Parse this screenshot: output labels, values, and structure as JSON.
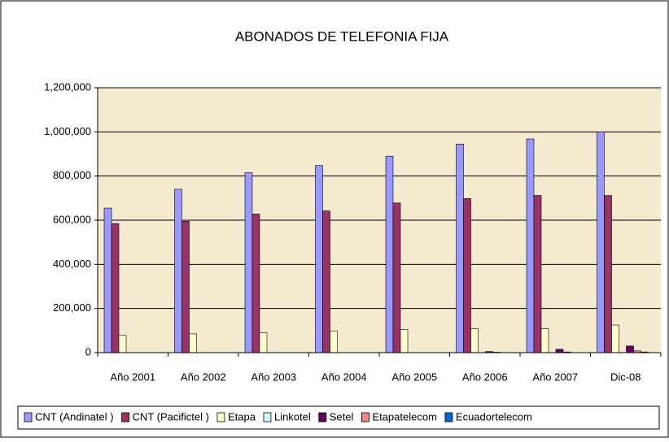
{
  "chart_data": {
    "type": "bar",
    "title": "ABONADOS DE TELEFONIA FIJA",
    "categories": [
      "Año 2001",
      "Año 2002",
      "Año 2003",
      "Año 2004",
      "Año 2005",
      "Año 2006",
      "Año 2007",
      "Dic-08"
    ],
    "series": [
      {
        "name": "CNT (Andinatel )",
        "color": "#9999ff",
        "values": [
          655000,
          740000,
          815000,
          848000,
          890000,
          945000,
          968000,
          1000000
        ]
      },
      {
        "name": "CNT (Pacifictel )",
        "color": "#993366",
        "values": [
          585000,
          595000,
          628000,
          642000,
          678000,
          698000,
          712000,
          712000
        ]
      },
      {
        "name": "Etapa",
        "color": "#ffffcc",
        "values": [
          78000,
          85000,
          90000,
          98000,
          105000,
          108000,
          108000,
          125000
        ]
      },
      {
        "name": "Linkotel",
        "color": "#ccffff",
        "values": [
          0,
          0,
          0,
          0,
          0,
          0,
          0,
          0
        ]
      },
      {
        "name": "Setel",
        "color": "#660066",
        "values": [
          0,
          0,
          0,
          0,
          0,
          5000,
          15000,
          30000
        ]
      },
      {
        "name": "Etapatelecom",
        "color": "#ff8080",
        "values": [
          0,
          0,
          0,
          0,
          0,
          2000,
          3000,
          8000
        ]
      },
      {
        "name": "Ecuadortelecom",
        "color": "#0066cc",
        "values": [
          0,
          0,
          0,
          0,
          0,
          0,
          0,
          3000
        ]
      }
    ],
    "ylim": [
      0,
      1200000
    ],
    "yticks": [
      0,
      {
        "value": 200000,
        "label": "200,000"
      },
      {
        "value": 400000,
        "label": "400,000"
      },
      {
        "value": 600000,
        "label": "600,000"
      },
      {
        "value": 800000,
        "label": "800,000"
      },
      {
        "value": 1000000,
        "label": "1,000,000"
      },
      {
        "value": 1200000,
        "label": "1,200,000"
      }
    ],
    "grid": true,
    "legend": "bottom"
  }
}
